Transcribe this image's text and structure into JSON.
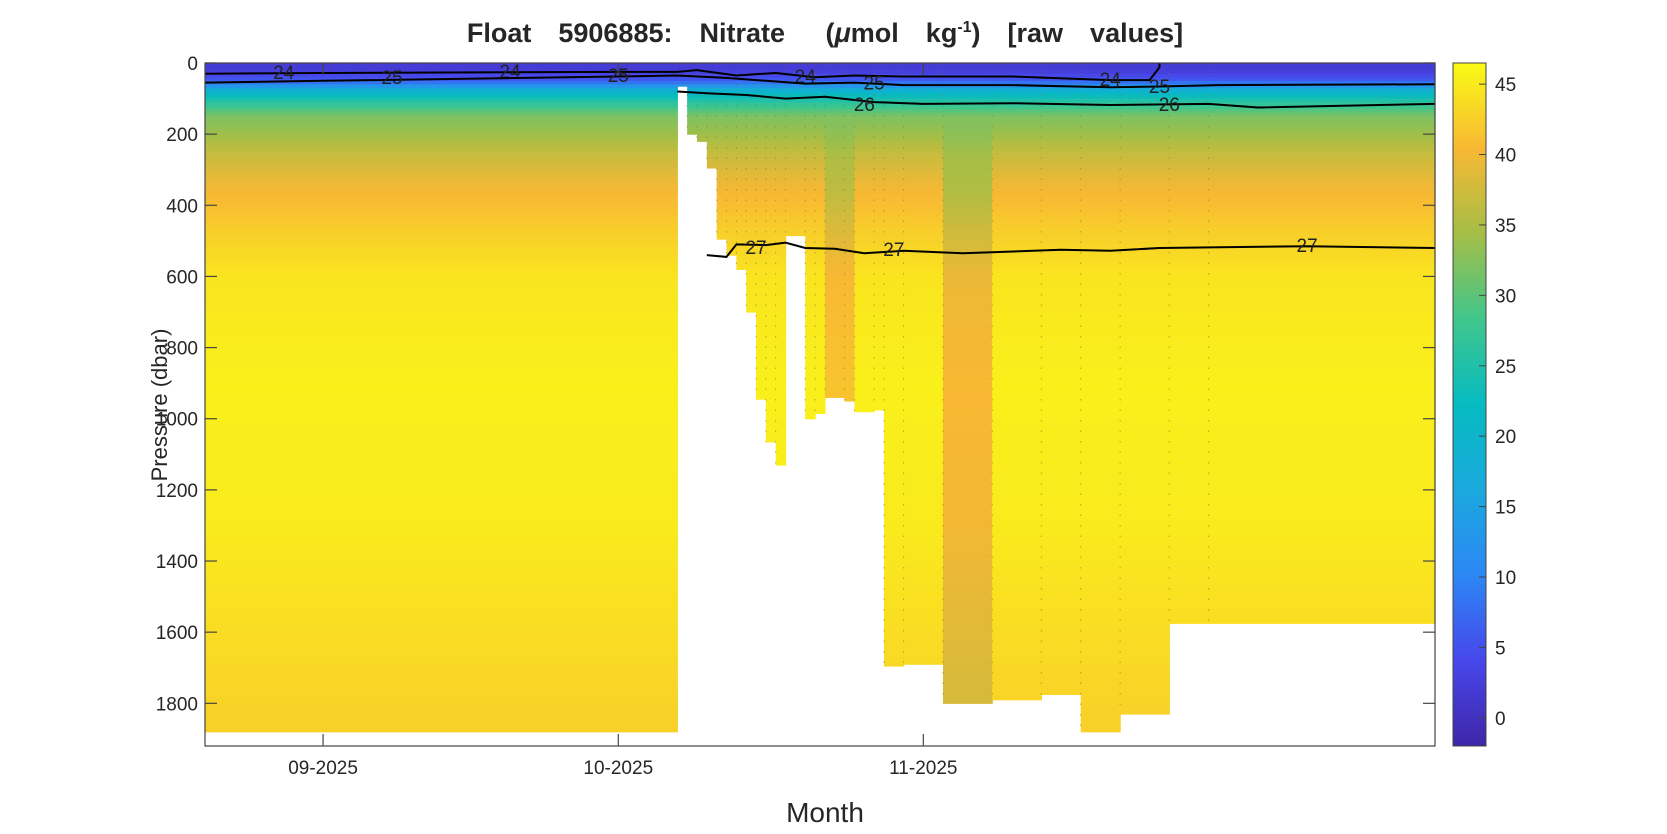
{
  "title_parts": {
    "prefix": "Float  5906885:  Nitrate   (",
    "mu": "μ",
    "unit": "mol  kg",
    "sup": "-1",
    "suffix": ")  [raw  values]"
  },
  "chart_data": {
    "type": "heatmap",
    "xlabel": "Month",
    "ylabel": "Pressure (dbar)",
    "x_range": [
      "2025-08-20",
      "2025-12-23"
    ],
    "ylim": [
      0,
      1920
    ],
    "y_reversed": true,
    "x_ticks": [
      {
        "date": "2025-09-01",
        "label": "09-2025"
      },
      {
        "date": "2025-10-01",
        "label": "10-2025"
      },
      {
        "date": "2025-11-01",
        "label": "11-2025"
      }
    ],
    "y_ticks": [
      0,
      200,
      400,
      600,
      800,
      1000,
      1200,
      1400,
      1600,
      1800
    ],
    "colorbar": {
      "min": -2,
      "max": 46.5,
      "ticks": [
        0,
        5,
        10,
        15,
        20,
        25,
        30,
        35,
        40,
        45
      ],
      "colormap": "parula"
    },
    "profile_nitrate": [
      {
        "pressure": 0,
        "nitrate": 2
      },
      {
        "pressure": 20,
        "nitrate": 2
      },
      {
        "pressure": 50,
        "nitrate": 6
      },
      {
        "pressure": 80,
        "nitrate": 20
      },
      {
        "pressure": 110,
        "nitrate": 26
      },
      {
        "pressure": 150,
        "nitrate": 32
      },
      {
        "pressure": 200,
        "nitrate": 34
      },
      {
        "pressure": 260,
        "nitrate": 37
      },
      {
        "pressure": 350,
        "nitrate": 40
      },
      {
        "pressure": 450,
        "nitrate": 42
      },
      {
        "pressure": 600,
        "nitrate": 44.5
      },
      {
        "pressure": 900,
        "nitrate": 45.5
      },
      {
        "pressure": 1300,
        "nitrate": 45
      },
      {
        "pressure": 1900,
        "nitrate": 42.5
      }
    ],
    "profiles": [
      {
        "date": "2025-08-20",
        "max_pressure": 1880,
        "nitrate_offset": 0
      },
      {
        "date": "2025-10-07",
        "max_pressure": 65,
        "nitrate_offset": 0
      },
      {
        "date": "2025-10-08",
        "max_pressure": 200,
        "nitrate_offset": 0
      },
      {
        "date": "2025-10-09",
        "max_pressure": 220,
        "nitrate_offset": 0
      },
      {
        "date": "2025-10-10",
        "max_pressure": 295,
        "nitrate_offset": 0
      },
      {
        "date": "2025-10-11",
        "max_pressure": 495,
        "nitrate_offset": 0
      },
      {
        "date": "2025-10-12",
        "max_pressure": 540,
        "nitrate_offset": 0
      },
      {
        "date": "2025-10-13",
        "max_pressure": 580,
        "nitrate_offset": 0
      },
      {
        "date": "2025-10-14",
        "max_pressure": 700,
        "nitrate_offset": 0
      },
      {
        "date": "2025-10-15",
        "max_pressure": 945,
        "nitrate_offset": 0
      },
      {
        "date": "2025-10-16",
        "max_pressure": 1065,
        "nitrate_offset": 0
      },
      {
        "date": "2025-10-17",
        "max_pressure": 1130,
        "nitrate_offset": 0
      },
      {
        "date": "2025-10-18",
        "max_pressure": 485,
        "nitrate_offset": 0
      },
      {
        "date": "2025-10-20",
        "max_pressure": 1000,
        "nitrate_offset": 0
      },
      {
        "date": "2025-10-21",
        "max_pressure": 985,
        "nitrate_offset": 0
      },
      {
        "date": "2025-10-22",
        "max_pressure": 940,
        "nitrate_offset": -4
      },
      {
        "date": "2025-10-24",
        "max_pressure": 950,
        "nitrate_offset": -4
      },
      {
        "date": "2025-10-25",
        "max_pressure": 980,
        "nitrate_offset": 0
      },
      {
        "date": "2025-10-27",
        "max_pressure": 975,
        "nitrate_offset": 0
      },
      {
        "date": "2025-10-28",
        "max_pressure": 1695,
        "nitrate_offset": 0
      },
      {
        "date": "2025-10-30",
        "max_pressure": 1690,
        "nitrate_offset": 0
      },
      {
        "date": "2025-11-03",
        "max_pressure": 1800,
        "nitrate_offset": -5
      },
      {
        "date": "2025-11-08",
        "max_pressure": 1790,
        "nitrate_offset": 0
      },
      {
        "date": "2025-11-13",
        "max_pressure": 1775,
        "nitrate_offset": 0
      },
      {
        "date": "2025-11-17",
        "max_pressure": 1880,
        "nitrate_offset": 0
      },
      {
        "date": "2025-11-21",
        "max_pressure": 1830,
        "nitrate_offset": 0
      },
      {
        "date": "2025-11-26",
        "max_pressure": 1575,
        "nitrate_offset": 0
      },
      {
        "date": "2025-11-30",
        "max_pressure": 1575,
        "nitrate_offset": 0
      }
    ],
    "contours": [
      {
        "level": "24",
        "points": [
          [
            "2025-08-20",
            30
          ],
          [
            "2025-09-01",
            28
          ],
          [
            "2025-10-01",
            25
          ],
          [
            "2025-10-07",
            25
          ],
          [
            "2025-10-09",
            20
          ],
          [
            "2025-10-13",
            35
          ],
          [
            "2025-10-17",
            28
          ],
          [
            "2025-10-21",
            40
          ],
          [
            "2025-10-25",
            35
          ],
          [
            "2025-10-30",
            38
          ],
          [
            "2025-11-10",
            38
          ],
          [
            "2025-11-20",
            48
          ],
          [
            "2025-11-24",
            48
          ],
          [
            "2025-11-25",
            12
          ],
          [
            "2025-11-25",
            0
          ]
        ],
        "labels": [
          [
            "2025-08-28",
            28
          ],
          [
            "2025-09-20",
            25
          ],
          [
            "2025-10-20",
            40
          ],
          [
            "2025-11-20",
            48
          ]
        ]
      },
      {
        "level": "25",
        "points": [
          [
            "2025-08-20",
            55
          ],
          [
            "2025-09-01",
            50
          ],
          [
            "2025-10-01",
            38
          ],
          [
            "2025-10-07",
            35
          ],
          [
            "2025-10-12",
            42
          ],
          [
            "2025-10-16",
            50
          ],
          [
            "2025-10-20",
            58
          ],
          [
            "2025-10-25",
            55
          ],
          [
            "2025-10-30",
            62
          ],
          [
            "2025-11-10",
            62
          ],
          [
            "2025-11-20",
            68
          ],
          [
            "2025-11-25",
            66
          ],
          [
            "2025-12-01",
            62
          ],
          [
            "2025-12-23",
            60
          ]
        ],
        "labels": [
          [
            "2025-09-08",
            42
          ],
          [
            "2025-10-01",
            36
          ],
          [
            "2025-10-27",
            58
          ],
          [
            "2025-11-25",
            68
          ]
        ]
      },
      {
        "level": "26",
        "points": [
          [
            "2025-10-07",
            80
          ],
          [
            "2025-10-10",
            85
          ],
          [
            "2025-10-14",
            90
          ],
          [
            "2025-10-18",
            100
          ],
          [
            "2025-10-22",
            95
          ],
          [
            "2025-10-27",
            110
          ],
          [
            "2025-11-01",
            115
          ],
          [
            "2025-11-10",
            113
          ],
          [
            "2025-11-20",
            118
          ],
          [
            "2025-11-30",
            115
          ],
          [
            "2025-12-05",
            125
          ],
          [
            "2025-12-23",
            115
          ]
        ],
        "labels": [
          [
            "2025-10-26",
            118
          ],
          [
            "2025-11-26",
            118
          ]
        ]
      },
      {
        "level": "27",
        "points": [
          [
            "2025-10-10",
            540
          ],
          [
            "2025-10-12",
            545
          ],
          [
            "2025-10-13",
            510
          ],
          [
            "2025-10-16",
            512
          ],
          [
            "2025-10-18",
            505
          ],
          [
            "2025-10-20",
            520
          ],
          [
            "2025-10-23",
            522
          ],
          [
            "2025-10-26",
            535
          ],
          [
            "2025-10-30",
            528
          ],
          [
            "2025-11-05",
            535
          ],
          [
            "2025-11-15",
            525
          ],
          [
            "2025-11-20",
            528
          ],
          [
            "2025-11-25",
            520
          ],
          [
            "2025-12-10",
            515
          ],
          [
            "2025-12-23",
            520
          ]
        ],
        "labels": [
          [
            "2025-10-15",
            520
          ],
          [
            "2025-10-29",
            525
          ],
          [
            "2025-12-10",
            515
          ]
        ]
      }
    ]
  }
}
